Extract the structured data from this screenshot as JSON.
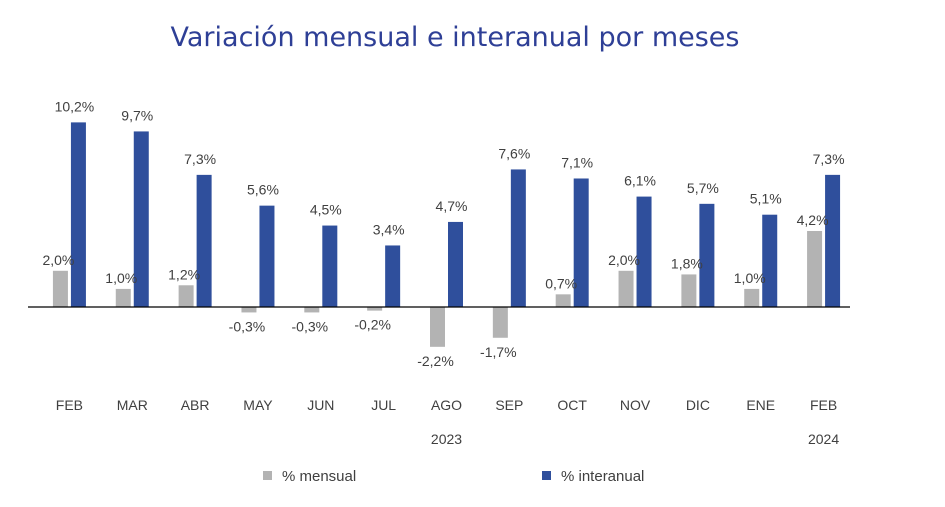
{
  "chart_data": {
    "type": "bar",
    "title": "Variación mensual e interanual por meses",
    "categories": [
      "FEB",
      "MAR",
      "ABR",
      "MAY",
      "JUN",
      "JUL",
      "AGO",
      "SEP",
      "OCT",
      "NOV",
      "DIC",
      "ENE",
      "FEB"
    ],
    "year_labels": [
      {
        "text": "2023",
        "category_index": 6
      },
      {
        "text": "2024",
        "category_index": 12
      }
    ],
    "series": [
      {
        "name": "% mensual",
        "color": "#b3b3b3",
        "values": [
          2.0,
          1.0,
          1.2,
          -0.3,
          -0.3,
          -0.2,
          -2.2,
          -1.7,
          0.7,
          2.0,
          1.8,
          1.0,
          4.2
        ],
        "labels": [
          "2,0%",
          "1,0%",
          "1,2%",
          "-0,3%",
          "-0,3%",
          "-0,2%",
          "-2,2%",
          "-1,7%",
          "0,7%",
          "2,0%",
          "1,8%",
          "1,0%",
          "4,2%"
        ]
      },
      {
        "name": "% interanual",
        "color": "#2f4f9c",
        "values": [
          10.2,
          9.7,
          7.3,
          5.6,
          4.5,
          3.4,
          4.7,
          7.6,
          7.1,
          6.1,
          5.7,
          5.1,
          7.3
        ],
        "labels": [
          "10,2%",
          "9,7%",
          "7,3%",
          "5,6%",
          "4,5%",
          "3,4%",
          "4,7%",
          "7,6%",
          "7,1%",
          "6,1%",
          "5,7%",
          "5,1%",
          "7,3%"
        ]
      }
    ],
    "legend_position": "bottom",
    "grid": false
  }
}
